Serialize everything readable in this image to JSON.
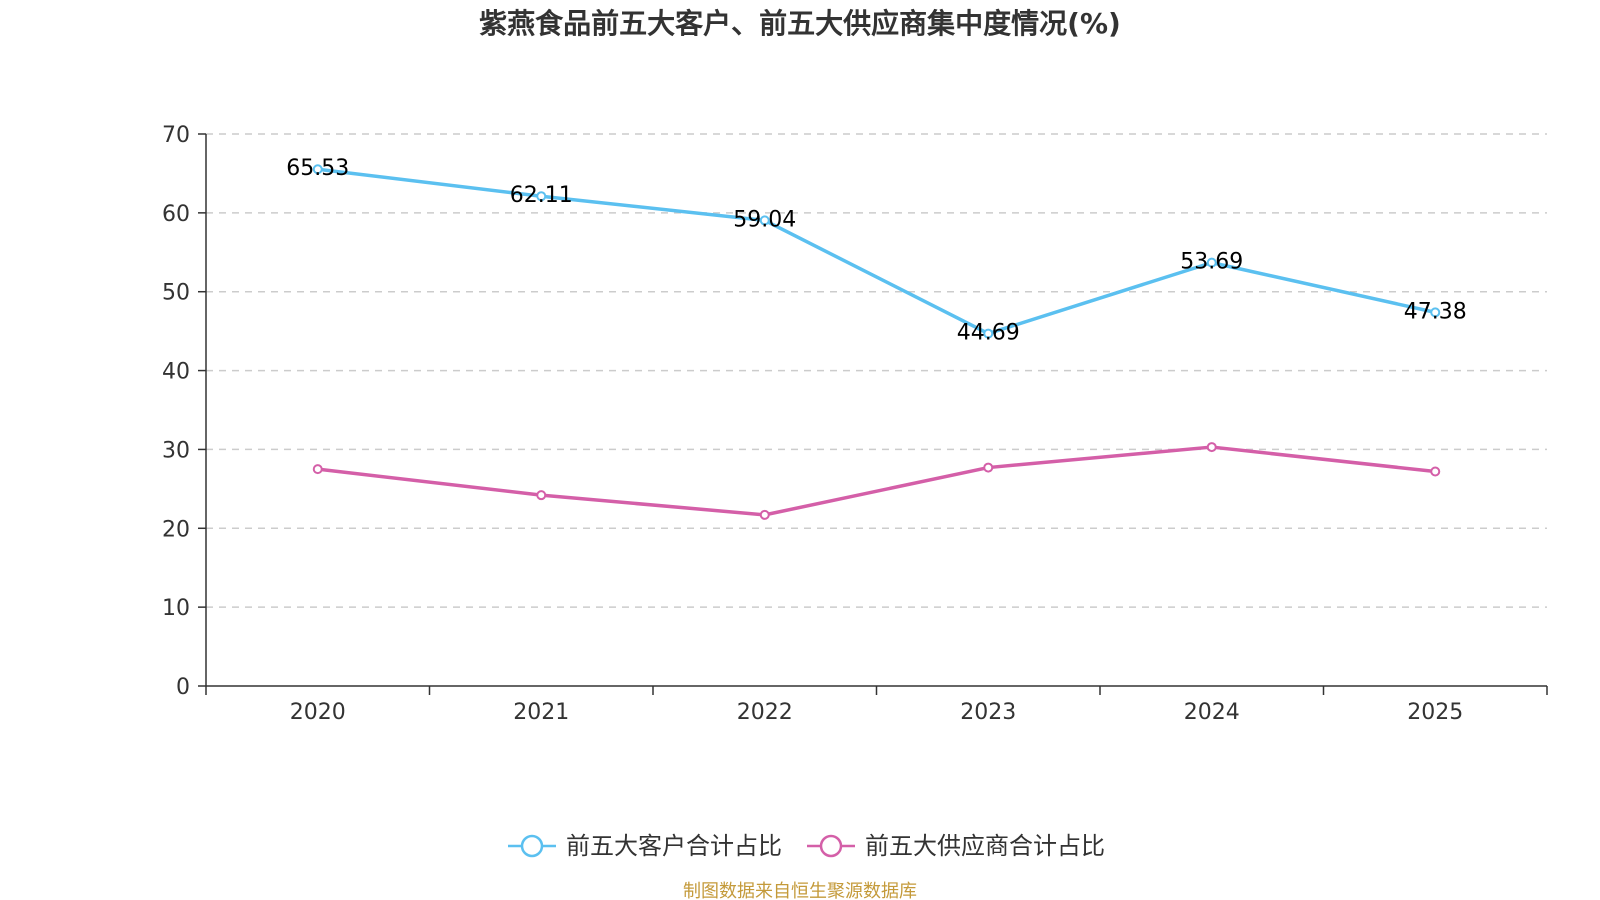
{
  "chart_data": {
    "type": "line",
    "title": "紫燕食品前五大客户、前五大供应商集中度情况(%)",
    "categories": [
      "2020",
      "2021",
      "2022",
      "2023",
      "2024",
      "2025"
    ],
    "ylim": [
      0,
      70
    ],
    "yticks": [
      0,
      10,
      20,
      30,
      40,
      50,
      60,
      70
    ],
    "grid": true,
    "legend_position": "bottom-center",
    "series": [
      {
        "name": "前五大客户合计占比",
        "color": "#5bc0f0",
        "values": [
          65.53,
          62.11,
          59.04,
          44.69,
          53.69,
          47.38
        ],
        "labels": [
          "65.53",
          "62.11",
          "59.04",
          "44.69",
          "53.69",
          "47.38"
        ],
        "show_labels": true
      },
      {
        "name": "前五大供应商合计占比",
        "color": "#d45fa8",
        "values": [
          27.5,
          24.2,
          21.7,
          27.7,
          30.3,
          27.2
        ],
        "show_labels": false
      }
    ]
  },
  "source": "制图数据来自恒生聚源数据库"
}
